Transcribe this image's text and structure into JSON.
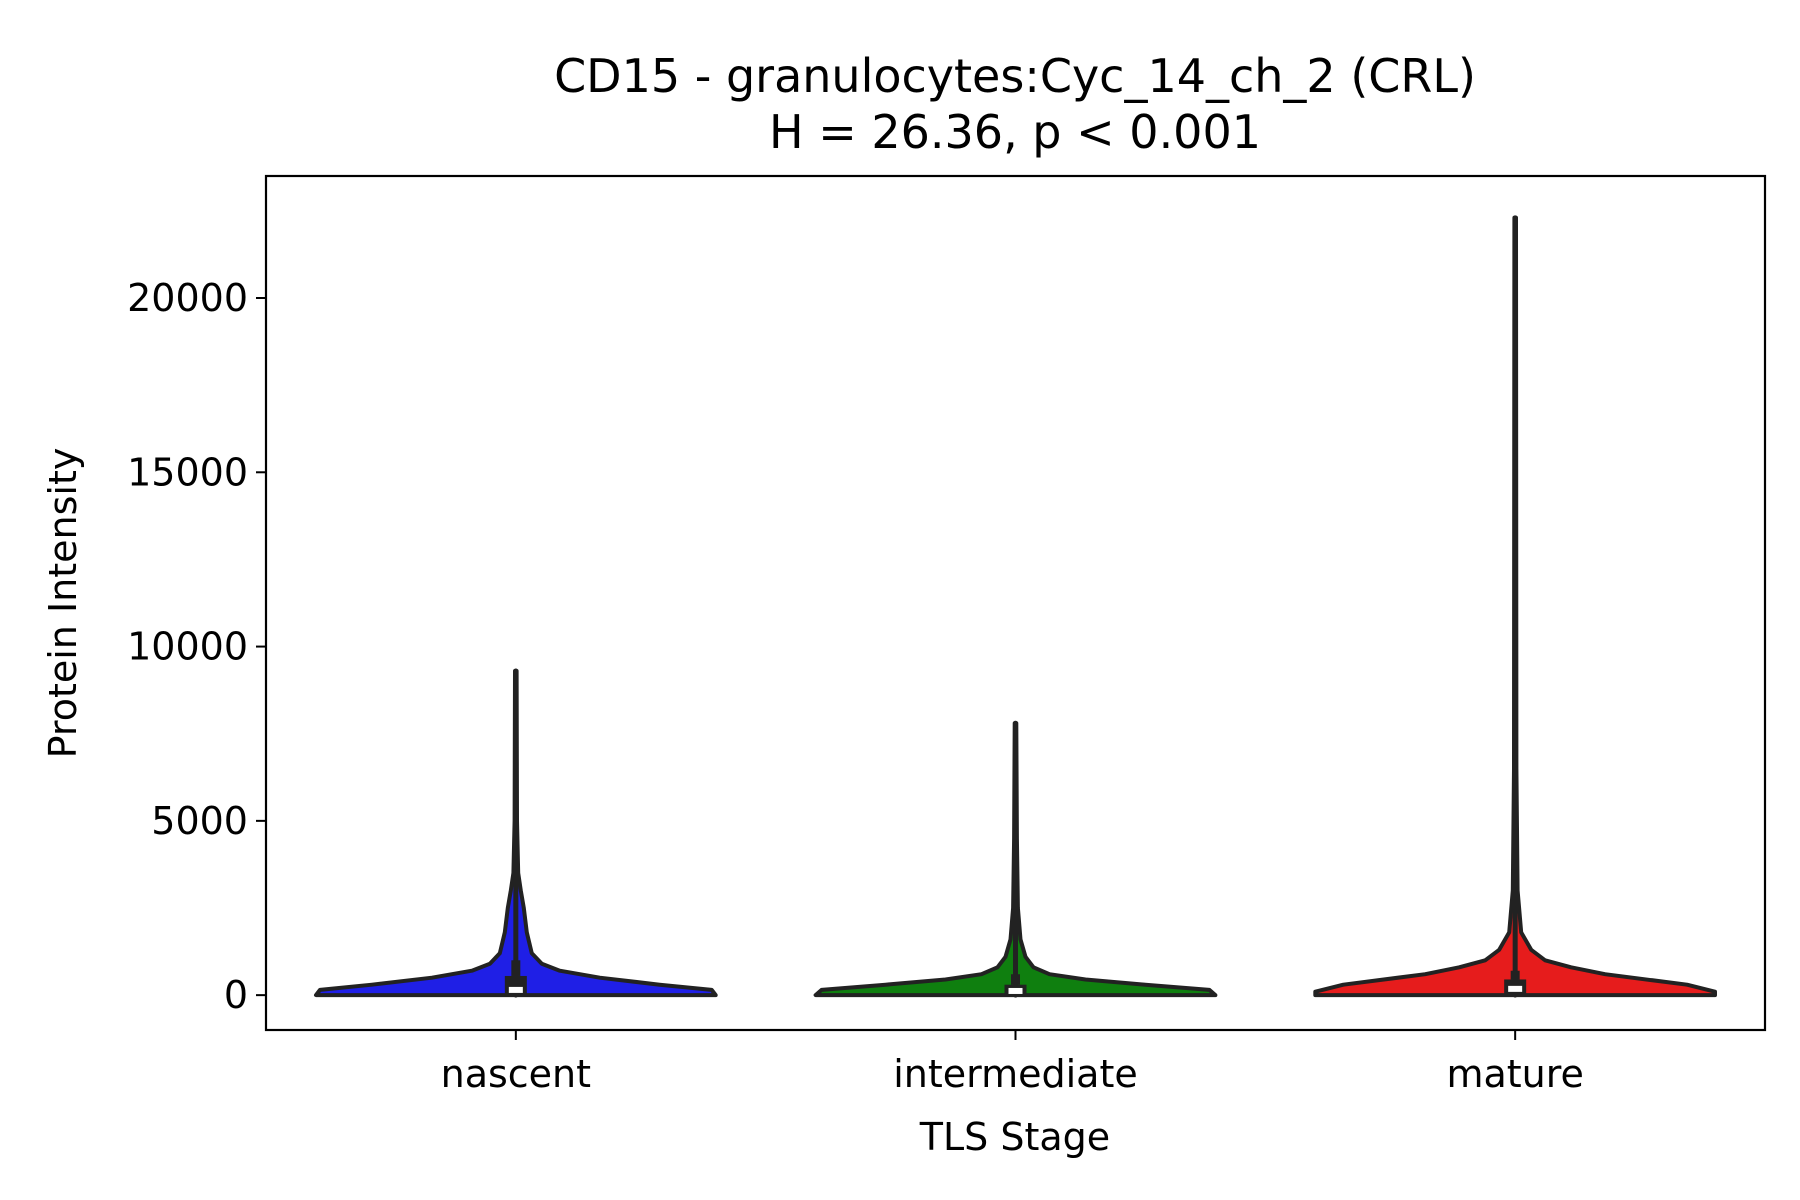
{
  "chart_data": {
    "type": "violin",
    "title": "CD15 - granulocytes:Cyc_14_ch_2 (CRL)",
    "subtitle": "H = 26.36, p < 0.001",
    "xlabel": "TLS Stage",
    "ylabel": "Protein Intensity",
    "categories": [
      "nascent",
      "intermediate",
      "mature"
    ],
    "ylim": [
      -1000,
      23500
    ],
    "yticks": [
      0,
      5000,
      10000,
      15000,
      20000
    ],
    "ytick_labels": [
      "0",
      "5000",
      "10000",
      "15000",
      "20000"
    ],
    "grid": false,
    "legend": "none",
    "series": [
      {
        "category": "nascent",
        "color": "#1f1fe6",
        "min": 0,
        "max": 9300,
        "q1": 20,
        "median": 150,
        "q3": 550,
        "whisker_high": 1000,
        "density_profile": [
          {
            "y": 0,
            "w": 1.0
          },
          {
            "y": 150,
            "w": 0.98
          },
          {
            "y": 300,
            "w": 0.72
          },
          {
            "y": 500,
            "w": 0.42
          },
          {
            "y": 700,
            "w": 0.22
          },
          {
            "y": 900,
            "w": 0.13
          },
          {
            "y": 1200,
            "w": 0.08
          },
          {
            "y": 1800,
            "w": 0.055
          },
          {
            "y": 2500,
            "w": 0.04
          },
          {
            "y": 3000,
            "w": 0.025
          },
          {
            "y": 3500,
            "w": 0.012
          },
          {
            "y": 5000,
            "w": 0.006
          },
          {
            "y": 9300,
            "w": 0.004
          }
        ]
      },
      {
        "category": "intermediate",
        "color": "#0f7f0f",
        "min": 0,
        "max": 7800,
        "q1": 20,
        "median": 120,
        "q3": 300,
        "whisker_high": 600,
        "density_profile": [
          {
            "y": 0,
            "w": 1.0
          },
          {
            "y": 150,
            "w": 0.97
          },
          {
            "y": 300,
            "w": 0.65
          },
          {
            "y": 450,
            "w": 0.35
          },
          {
            "y": 600,
            "w": 0.17
          },
          {
            "y": 800,
            "w": 0.09
          },
          {
            "y": 1100,
            "w": 0.05
          },
          {
            "y": 1600,
            "w": 0.025
          },
          {
            "y": 2500,
            "w": 0.012
          },
          {
            "y": 4500,
            "w": 0.007
          },
          {
            "y": 7800,
            "w": 0.004
          }
        ]
      },
      {
        "category": "mature",
        "color": "#e61c1c",
        "min": 0,
        "max": 22300,
        "q1": 20,
        "median": 180,
        "q3": 450,
        "whisker_high": 700,
        "density_profile": [
          {
            "y": 0,
            "w": 1.0
          },
          {
            "y": 100,
            "w": 1.0
          },
          {
            "y": 300,
            "w": 0.86
          },
          {
            "y": 600,
            "w": 0.45
          },
          {
            "y": 800,
            "w": 0.28
          },
          {
            "y": 1000,
            "w": 0.15
          },
          {
            "y": 1300,
            "w": 0.08
          },
          {
            "y": 1800,
            "w": 0.03
          },
          {
            "y": 3000,
            "w": 0.012
          },
          {
            "y": 6500,
            "w": 0.006
          },
          {
            "y": 22300,
            "w": 0.004
          }
        ]
      }
    ]
  }
}
